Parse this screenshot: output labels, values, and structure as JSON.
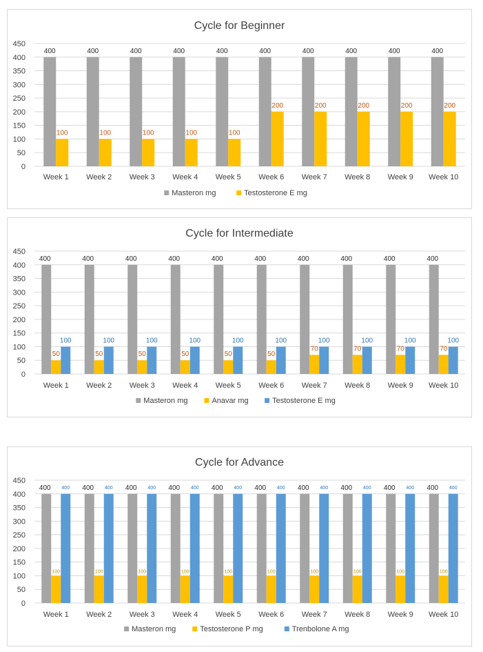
{
  "colors": {
    "masteron": "#a5a5a5",
    "orange_series": "#ffc000",
    "blue_series": "#5b9bd5",
    "label_dark": "#262626",
    "label_orange": "#c55a11",
    "label_orange_light": "#bf9000",
    "label_blue": "#2e75b6",
    "grid": "#d9d9d9",
    "text": "#404040"
  },
  "chart_data": [
    {
      "type": "bar",
      "title": "Cycle for Beginner",
      "xlabel": "",
      "ylabel": "",
      "ylim": [
        0,
        450
      ],
      "yticks": [
        "0",
        "50",
        "100",
        "150",
        "200",
        "250",
        "300",
        "350",
        "400",
        "450"
      ],
      "grid": true,
      "legend_position": "bottom",
      "categories": [
        "Week 1",
        "Week 2",
        "Week 3",
        "Week 4",
        "Week 5",
        "Week 6",
        "Week 7",
        "Week 8",
        "Week 9",
        "Week 10"
      ],
      "series": [
        {
          "name": "Masteron  mg",
          "color": "#a5a5a5",
          "label_color": "#262626",
          "label_size": "normal",
          "values": [
            400,
            400,
            400,
            400,
            400,
            400,
            400,
            400,
            400,
            400
          ]
        },
        {
          "name": "Testosterone E mg",
          "color": "#ffc000",
          "label_color": "#c55a11",
          "label_size": "normal",
          "values": [
            100,
            100,
            100,
            100,
            100,
            200,
            200,
            200,
            200,
            200
          ]
        }
      ]
    },
    {
      "type": "bar",
      "title": "Cycle for Intermediate",
      "xlabel": "",
      "ylabel": "",
      "ylim": [
        0,
        450
      ],
      "yticks": [
        "0",
        "50",
        "100",
        "150",
        "200",
        "250",
        "300",
        "350",
        "400",
        "450"
      ],
      "grid": true,
      "legend_position": "bottom",
      "categories": [
        "Week 1",
        "Week 2",
        "Week 3",
        "Week 4",
        "Week 5",
        "Week 6",
        "Week 7",
        "Week 8",
        "Week 9",
        "Week 10"
      ],
      "series": [
        {
          "name": "Masteron mg",
          "color": "#a5a5a5",
          "label_color": "#262626",
          "label_size": "normal",
          "values": [
            400,
            400,
            400,
            400,
            400,
            400,
            400,
            400,
            400,
            400
          ]
        },
        {
          "name": "Anavar mg",
          "color": "#ffc000",
          "label_color": "#c55a11",
          "label_size": "normal",
          "values": [
            50,
            50,
            50,
            50,
            50,
            50,
            70,
            70,
            70,
            70
          ]
        },
        {
          "name": "Testosterone E mg",
          "color": "#5b9bd5",
          "label_color": "#2e75b6",
          "label_size": "normal",
          "values": [
            100,
            100,
            100,
            100,
            100,
            100,
            100,
            100,
            100,
            100
          ]
        }
      ]
    },
    {
      "type": "bar",
      "title": "Cycle for Advance",
      "xlabel": "",
      "ylabel": "",
      "ylim": [
        0,
        450
      ],
      "yticks": [
        "0",
        "50",
        "100",
        "150",
        "200",
        "250",
        "300",
        "350",
        "400",
        "450"
      ],
      "grid": true,
      "legend_position": "bottom",
      "categories": [
        "Week 1",
        "Week 2",
        "Week 3",
        "Week 4",
        "Week 5",
        "Week 6",
        "Week 7",
        "Week 8",
        "Week 9",
        "Week 10"
      ],
      "series": [
        {
          "name": "Masteron mg",
          "color": "#a5a5a5",
          "label_color": "#262626",
          "label_size": "normal",
          "values": [
            400,
            400,
            400,
            400,
            400,
            400,
            400,
            400,
            400,
            400
          ]
        },
        {
          "name": "Testosterone P mg",
          "color": "#ffc000",
          "label_color": "#bf9000",
          "label_size": "small",
          "values": [
            100,
            100,
            100,
            100,
            100,
            100,
            100,
            100,
            100,
            100
          ]
        },
        {
          "name": "Trenbolone A mg",
          "color": "#5b9bd5",
          "label_color": "#2e75b6",
          "label_size": "small_blue",
          "values": [
            400,
            400,
            400,
            400,
            400,
            400,
            400,
            400,
            400,
            400
          ]
        }
      ]
    }
  ]
}
